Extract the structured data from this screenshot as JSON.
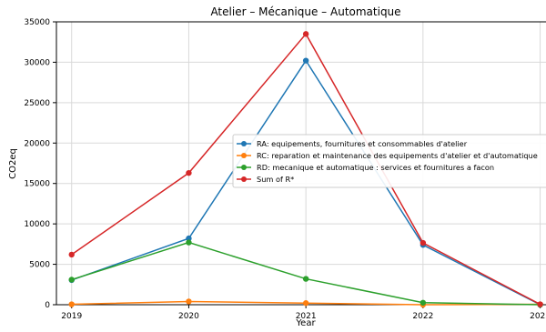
{
  "chart_data": {
    "type": "line",
    "title": "Atelier – Mécanique – Automatique",
    "xlabel": "Year",
    "ylabel": "CO2eq",
    "x": [
      2019,
      2020,
      2021,
      2022,
      2023
    ],
    "x_ticks": [
      "2019",
      "2020",
      "2021",
      "2022",
      "2023"
    ],
    "xlim": [
      2018.87,
      2023.05
    ],
    "ylim": [
      0,
      35000
    ],
    "y_ticks": [
      "0",
      "5000",
      "10000",
      "15000",
      "20000",
      "25000",
      "30000",
      "35000"
    ],
    "grid": true,
    "legend_position": "right",
    "series": [
      {
        "name": "RA: equipements, fournitures et consommables d'atelier",
        "color": "#1f77b4",
        "values": [
          3050,
          8200,
          30200,
          7400,
          0
        ]
      },
      {
        "name": "RC: reparation et maintenance des equipements d'atelier et d'automatique",
        "color": "#ff7f0e",
        "values": [
          50,
          400,
          200,
          0,
          50
        ]
      },
      {
        "name": "RD: mecanique et automatique : services et fournitures a facon",
        "color": "#2ca02c",
        "values": [
          3100,
          7700,
          3200,
          250,
          0
        ]
      },
      {
        "name": "Sum of R*",
        "color": "#d62728",
        "values": [
          6200,
          16300,
          33500,
          7650,
          50
        ]
      }
    ]
  }
}
